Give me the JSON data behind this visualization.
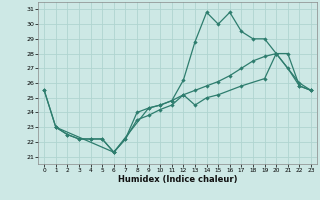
{
  "xlabel": "Humidex (Indice chaleur)",
  "bg_color": "#cde8e5",
  "grid_color": "#b0d4d0",
  "line_color": "#2e7d6e",
  "xlim": [
    -0.5,
    23.5
  ],
  "ylim": [
    20.5,
    31.5
  ],
  "yticks": [
    21,
    22,
    23,
    24,
    25,
    26,
    27,
    28,
    29,
    30,
    31
  ],
  "xticks": [
    0,
    1,
    2,
    3,
    4,
    5,
    6,
    7,
    8,
    9,
    10,
    11,
    12,
    13,
    14,
    15,
    16,
    17,
    18,
    19,
    20,
    21,
    22,
    23
  ],
  "line1_x": [
    0,
    1,
    2,
    3,
    4,
    5,
    6,
    7,
    8,
    9,
    10,
    11,
    12,
    13,
    14,
    15,
    16,
    17,
    18,
    19,
    20,
    21,
    22,
    23
  ],
  "line1_y": [
    25.5,
    23.0,
    22.5,
    22.2,
    22.2,
    22.2,
    21.3,
    22.2,
    24.0,
    24.3,
    24.5,
    24.8,
    26.2,
    28.8,
    30.8,
    30.0,
    30.8,
    29.5,
    29.0,
    29.0,
    28.0,
    27.0,
    25.8,
    25.5
  ],
  "line2_x": [
    0,
    1,
    2,
    3,
    4,
    5,
    6,
    7,
    8,
    9,
    10,
    11,
    12,
    13,
    14,
    15,
    16,
    17,
    18,
    19,
    20,
    21,
    22,
    23
  ],
  "line2_y": [
    25.5,
    23.0,
    22.5,
    22.2,
    22.2,
    22.2,
    21.3,
    22.2,
    23.5,
    23.8,
    24.2,
    24.5,
    25.2,
    25.5,
    25.8,
    26.1,
    26.5,
    27.0,
    27.5,
    27.8,
    28.0,
    28.0,
    25.8,
    25.5
  ],
  "line3_x": [
    1,
    6,
    9,
    10,
    11,
    12,
    13,
    14,
    15,
    17,
    19,
    20,
    22,
    23
  ],
  "line3_y": [
    23.0,
    21.3,
    24.3,
    24.5,
    24.8,
    25.2,
    24.5,
    25.0,
    25.2,
    25.8,
    26.3,
    28.0,
    26.0,
    25.5
  ]
}
